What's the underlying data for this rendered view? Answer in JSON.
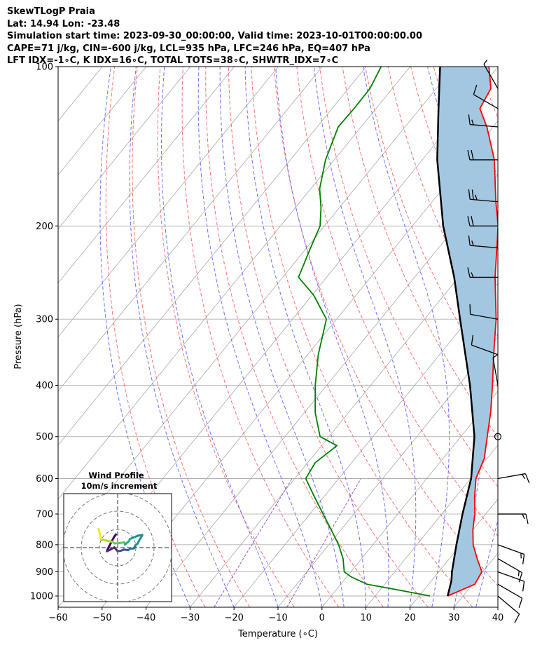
{
  "header": {
    "line1": "SkewTLogP Praia",
    "line2": "Lat: 14.94   Lon: -23.48",
    "line3": "Simulation start time: 2023-09-30_00:00:00, Valid time: 2023-10-01T00:00:00.00",
    "line4": "CAPE=71 j/kg, CIN=-600 j/kg, LCL=935 hPa, LFC=246 hPa, EQ=407 hPa",
    "line5": "LFT IDX=-1∘C, K IDX=16∘C, TOTAL TOTS=38∘C, SHWTR_IDX=7∘C"
  },
  "chart_data": {
    "type": "line",
    "subtype": "skew-t log-p",
    "xlabel": "Temperature (∘C)",
    "ylabel": "Pressure (hPa)",
    "xlim": [
      -60,
      40
    ],
    "ylim": [
      1050,
      100
    ],
    "log_y": true,
    "grid": true,
    "x_ticks": [
      "−60",
      "−50",
      "−40",
      "−30",
      "−20",
      "−10",
      "0",
      "10",
      "20",
      "30",
      "40"
    ],
    "x_tick_values": [
      -60,
      -50,
      -40,
      -30,
      -20,
      -10,
      0,
      10,
      20,
      30,
      40
    ],
    "y_ticks": [
      "100",
      "200",
      "300",
      "400",
      "500",
      "600",
      "700",
      "800",
      "900",
      "1000"
    ],
    "y_tick_values": [
      100,
      200,
      300,
      400,
      500,
      600,
      700,
      800,
      900,
      1000
    ],
    "series": [
      {
        "role": "temperature",
        "color": "#ff0000",
        "points": [
          [
            1000,
            26.5
          ],
          [
            975,
            28.5
          ],
          [
            950,
            30.5
          ],
          [
            900,
            29.8
          ],
          [
            850,
            26.3
          ],
          [
            800,
            22.8
          ],
          [
            750,
            20.0
          ],
          [
            700,
            17.5
          ],
          [
            650,
            14.3
          ],
          [
            600,
            11.2
          ],
          [
            550,
            9.4
          ],
          [
            500,
            6.0
          ],
          [
            450,
            2.3
          ],
          [
            400,
            -2.3
          ],
          [
            350,
            -7.7
          ],
          [
            300,
            -13.7
          ],
          [
            250,
            -21.7
          ],
          [
            200,
            -30.5
          ],
          [
            180,
            -35.5
          ],
          [
            150,
            -43.6
          ],
          [
            130,
            -51.4
          ],
          [
            120,
            -56.4
          ],
          [
            110,
            -57.6
          ],
          [
            100,
            -62.1
          ]
        ]
      },
      {
        "role": "dewpoint",
        "color": "#008000",
        "points": [
          [
            1000,
            22.5
          ],
          [
            975,
            14.5
          ],
          [
            950,
            6.0
          ],
          [
            920,
            1.0
          ],
          [
            900,
            -1.5
          ],
          [
            850,
            -4.2
          ],
          [
            800,
            -7.8
          ],
          [
            750,
            -12.2
          ],
          [
            700,
            -17.0
          ],
          [
            650,
            -22.1
          ],
          [
            600,
            -27.5
          ],
          [
            560,
            -28.3
          ],
          [
            520,
            -26.5
          ],
          [
            500,
            -32.0
          ],
          [
            450,
            -37.6
          ],
          [
            400,
            -42.6
          ],
          [
            350,
            -47.6
          ],
          [
            300,
            -52.3
          ],
          [
            270,
            -59.7
          ],
          [
            250,
            -66.4
          ],
          [
            220,
            -69.1
          ],
          [
            200,
            -71.0
          ],
          [
            185,
            -74.1
          ],
          [
            170,
            -78.0
          ],
          [
            150,
            -82.0
          ],
          [
            130,
            -85.2
          ],
          [
            120,
            -85.0
          ],
          [
            110,
            -85.1
          ],
          [
            100,
            -86.6
          ]
        ]
      },
      {
        "role": "parcel",
        "color": "#000000",
        "points": [
          [
            1000,
            26.5
          ],
          [
            935,
            24.5
          ],
          [
            900,
            23.0
          ],
          [
            800,
            19.0
          ],
          [
            700,
            14.7
          ],
          [
            600,
            10.1
          ],
          [
            500,
            3.1
          ],
          [
            400,
            -7.4
          ],
          [
            300,
            -21.9
          ],
          [
            250,
            -31.0
          ],
          [
            200,
            -43.0
          ],
          [
            150,
            -56.6
          ],
          [
            120,
            -65.8
          ],
          [
            100,
            -73.2
          ]
        ]
      }
    ],
    "shading": {
      "role": "cape/cin",
      "color": "#a3c7e0"
    },
    "reference_lines": {
      "isotherms_color": "#b0b0b0",
      "dry_adiabats_color": "#ff6f6f",
      "moist_adiabats_color": "#6f6fff",
      "mixing_ratio_color": "#9b59d0"
    },
    "wind_barbs": [
      {
        "p": 1000,
        "dir": 130,
        "speed_kt": 10
      },
      {
        "p": 950,
        "dir": 120,
        "speed_kt": 12
      },
      {
        "p": 900,
        "dir": 110,
        "speed_kt": 10
      },
      {
        "p": 850,
        "dir": 120,
        "speed_kt": 15
      },
      {
        "p": 800,
        "dir": 110,
        "speed_kt": 15
      },
      {
        "p": 700,
        "dir": 90,
        "speed_kt": 15
      },
      {
        "p": 600,
        "dir": 80,
        "speed_kt": 15
      },
      {
        "p": 500,
        "dir": 0,
        "speed_kt": 0
      },
      {
        "p": 400,
        "dir": 350,
        "speed_kt": 5
      },
      {
        "p": 350,
        "dir": 290,
        "speed_kt": 10
      },
      {
        "p": 300,
        "dir": 280,
        "speed_kt": 10
      },
      {
        "p": 250,
        "dir": 270,
        "speed_kt": 15
      },
      {
        "p": 220,
        "dir": 275,
        "speed_kt": 15
      },
      {
        "p": 200,
        "dir": 270,
        "speed_kt": 20
      },
      {
        "p": 180,
        "dir": 275,
        "speed_kt": 25
      },
      {
        "p": 150,
        "dir": 270,
        "speed_kt": 20
      },
      {
        "p": 130,
        "dir": 275,
        "speed_kt": 15
      },
      {
        "p": 120,
        "dir": 300,
        "speed_kt": 10
      },
      {
        "p": 110,
        "dir": 330,
        "speed_kt": 5
      }
    ],
    "inset": {
      "title_line1": "Wind Profile",
      "title_line2": "10m/s increment",
      "rings": 3,
      "hodograph": [
        [
          -0.3,
          0.9
        ],
        [
          -0.6,
          1.3
        ],
        [
          -1.1,
          2.2
        ],
        [
          -1.8,
          3.6
        ],
        [
          -1.9,
          3.9
        ],
        [
          -1.1,
          3.5
        ],
        [
          -0.6,
          3.2
        ],
        [
          0.0,
          3.9
        ],
        [
          0.6,
          3.8
        ],
        [
          1.1,
          3.6
        ],
        [
          1.9,
          3.7
        ],
        [
          2.3,
          3.4
        ],
        [
          2.9,
          3.4
        ],
        [
          3.2,
          2.8
        ],
        [
          3.5,
          2.6
        ],
        [
          4.4,
          1.0
        ],
        [
          3.7,
          1.1
        ],
        [
          2.2,
          1.7
        ],
        [
          2.0,
          2.1
        ],
        [
          1.3,
          2.7
        ],
        [
          1.2,
          2.3
        ],
        [
          0.6,
          2.4
        ],
        [
          -0.5,
          2.5
        ],
        [
          -1.0,
          2.2
        ],
        [
          -2.0,
          2.0
        ],
        [
          -2.9,
          1.8
        ],
        [
          -3.0,
          1.6
        ],
        [
          -3.2,
          0.8
        ],
        [
          -3.3,
          0.2
        ],
        [
          -3.4,
          -0.1
        ]
      ]
    }
  }
}
